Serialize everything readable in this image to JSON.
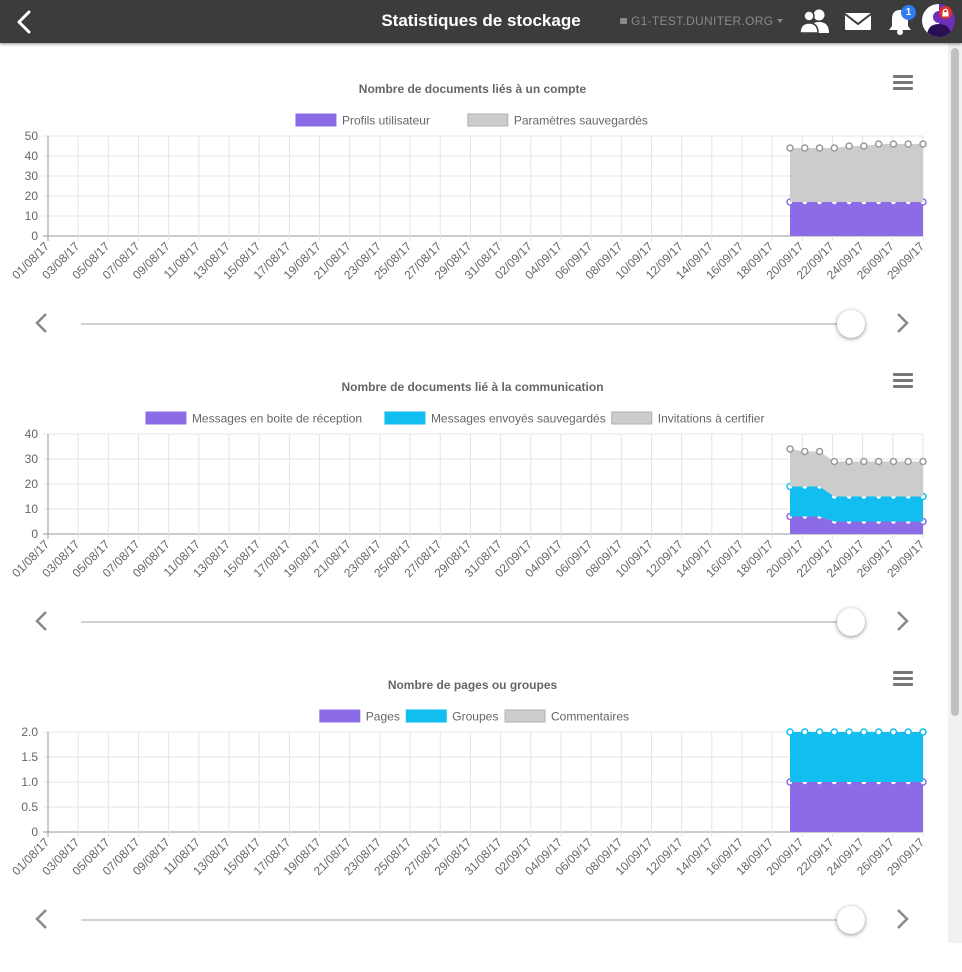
{
  "header": {
    "title": "Statistiques de stockage",
    "node_label": "G1-TEST.DUNITER.ORG",
    "notifications_count": "1",
    "bar_color": "#3c3c3c"
  },
  "icons": {
    "back": "chevron-left-icon",
    "groups": "users-icon",
    "messages": "envelope-icon",
    "notifications": "bell-icon",
    "avatar": "avatar",
    "node_lock": "lock-icon",
    "chart_menu": "hamburger-menu-icon",
    "prev": "chevron-left-icon",
    "next": "chevron-right-icon"
  },
  "colors": {
    "purple": "#8c6be6",
    "cyan": "#12bdf0",
    "gray": "#cccccc",
    "badge": "#2d7cf0"
  },
  "slider_position": 1.0,
  "chart_data": [
    {
      "type": "area",
      "title": "Nombre de documents liés à un compte",
      "stacked": true,
      "ylim": [
        0,
        50
      ],
      "yticks": [
        "0",
        "10",
        "20",
        "30",
        "40",
        "50"
      ],
      "legend_position": "top",
      "grid": true,
      "x_labels": [
        "01/08/17",
        "03/08/17",
        "05/08/17",
        "07/08/17",
        "09/08/17",
        "11/08/17",
        "13/08/17",
        "15/08/17",
        "17/08/17",
        "19/08/17",
        "21/08/17",
        "23/08/17",
        "25/08/17",
        "27/08/17",
        "29/08/17",
        "31/08/17",
        "02/09/17",
        "04/09/17",
        "06/09/17",
        "08/09/17",
        "10/09/17",
        "12/09/17",
        "14/09/17",
        "16/09/17",
        "18/09/17",
        "20/09/17",
        "22/09/17",
        "24/09/17",
        "26/09/17",
        "29/09/17"
      ],
      "x_points": [
        "21/09/17",
        "22/09/17",
        "23/09/17",
        "24/09/17",
        "25/09/17",
        "26/09/17",
        "27/09/17",
        "28/09/17",
        "29/09/17",
        "30/09/17"
      ],
      "series": [
        {
          "name": "Profils utilisateur",
          "color": "#8c6be6",
          "values": [
            17,
            17,
            17,
            17,
            17,
            17,
            17,
            17,
            17,
            17
          ]
        },
        {
          "name": "Paramètres sauvegardés",
          "color": "#cccccc",
          "values": [
            27,
            27,
            27,
            27,
            28,
            28,
            29,
            29,
            29,
            29
          ]
        }
      ]
    },
    {
      "type": "area",
      "title": "Nombre de documents lié à la communication",
      "stacked": true,
      "ylim": [
        0,
        40
      ],
      "yticks": [
        "0",
        "10",
        "20",
        "30",
        "40"
      ],
      "legend_position": "top",
      "grid": true,
      "x_labels": [
        "01/08/17",
        "03/08/17",
        "05/08/17",
        "07/08/17",
        "09/08/17",
        "11/08/17",
        "13/08/17",
        "15/08/17",
        "17/08/17",
        "19/08/17",
        "21/08/17",
        "23/08/17",
        "25/08/17",
        "27/08/17",
        "29/08/17",
        "31/08/17",
        "02/09/17",
        "04/09/17",
        "06/09/17",
        "08/09/17",
        "10/09/17",
        "12/09/17",
        "14/09/17",
        "16/09/17",
        "18/09/17",
        "20/09/17",
        "22/09/17",
        "24/09/17",
        "26/09/17",
        "29/09/17"
      ],
      "x_points": [
        "21/09/17",
        "22/09/17",
        "23/09/17",
        "24/09/17",
        "25/09/17",
        "26/09/17",
        "27/09/17",
        "28/09/17",
        "29/09/17",
        "30/09/17"
      ],
      "series": [
        {
          "name": "Messages en boite de réception",
          "color": "#8c6be6",
          "values": [
            7,
            7,
            7,
            5,
            5,
            5,
            5,
            5,
            5,
            5
          ]
        },
        {
          "name": "Messages envoyés sauvegardés",
          "color": "#12bdf0",
          "values": [
            12,
            12,
            12,
            10,
            10,
            10,
            10,
            10,
            10,
            10
          ]
        },
        {
          "name": "Invitations à certifier",
          "color": "#cccccc",
          "values": [
            15,
            14,
            14,
            14,
            14,
            14,
            14,
            14,
            14,
            14
          ]
        }
      ]
    },
    {
      "type": "area",
      "title": "Nombre de pages ou groupes",
      "stacked": true,
      "ylim": [
        0,
        2
      ],
      "yticks": [
        "0",
        "0.5",
        "1.0",
        "1.5",
        "2.0"
      ],
      "legend_position": "top",
      "grid": true,
      "x_labels": [
        "01/08/17",
        "03/08/17",
        "05/08/17",
        "07/08/17",
        "09/08/17",
        "11/08/17",
        "13/08/17",
        "15/08/17",
        "17/08/17",
        "19/08/17",
        "21/08/17",
        "23/08/17",
        "25/08/17",
        "27/08/17",
        "29/08/17",
        "31/08/17",
        "02/09/17",
        "04/09/17",
        "06/09/17",
        "08/09/17",
        "10/09/17",
        "12/09/17",
        "14/09/17",
        "16/09/17",
        "18/09/17",
        "20/09/17",
        "22/09/17",
        "24/09/17",
        "26/09/17",
        "29/09/17"
      ],
      "x_points": [
        "21/09/17",
        "22/09/17",
        "23/09/17",
        "24/09/17",
        "25/09/17",
        "26/09/17",
        "27/09/17",
        "28/09/17",
        "29/09/17",
        "30/09/17"
      ],
      "series": [
        {
          "name": "Pages",
          "color": "#8c6be6",
          "values": [
            1,
            1,
            1,
            1,
            1,
            1,
            1,
            1,
            1,
            1
          ]
        },
        {
          "name": "Groupes",
          "color": "#12bdf0",
          "values": [
            1,
            1,
            1,
            1,
            1,
            1,
            1,
            1,
            1,
            1
          ]
        },
        {
          "name": "Commentaires",
          "color": "#cccccc",
          "values": [
            0,
            0,
            0,
            0,
            0,
            0,
            0,
            0,
            0,
            0
          ]
        }
      ]
    }
  ]
}
